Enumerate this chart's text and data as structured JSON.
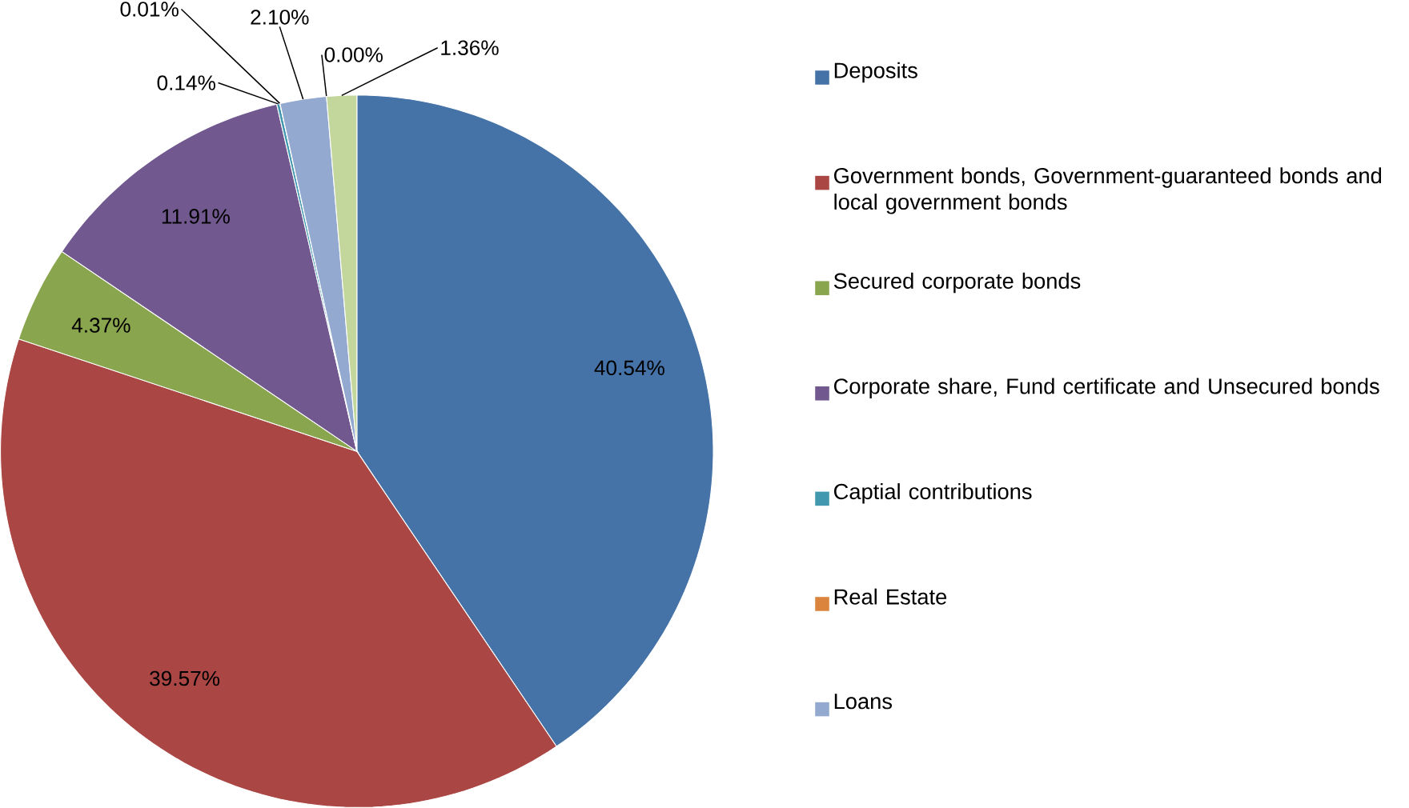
{
  "chart_data": {
    "type": "pie",
    "categories": [
      "Deposits",
      "Government bonds, Government-guaranteed bonds and local government bonds",
      "Secured corporate bonds",
      "Corporate share, Fund certificate and Unsecured bonds",
      "Captial contributions",
      "Real Estate",
      "Loans",
      null,
      null
    ],
    "values": [
      40.54,
      39.57,
      4.37,
      11.91,
      0.14,
      0.01,
      2.1,
      0.0,
      1.36
    ],
    "value_labels": [
      "40.54%",
      "39.57%",
      "4.37%",
      "11.91%",
      "0.14%",
      "0.01%",
      "2.10%",
      "0.00%",
      "1.36%"
    ],
    "colors": [
      "#4572a7",
      "#aa4643",
      "#89a54e",
      "#71588f",
      "#4198af",
      "#db843d",
      "#93a9cf",
      "#b9a9d3",
      "#c3d69b"
    ],
    "legend": "right"
  }
}
